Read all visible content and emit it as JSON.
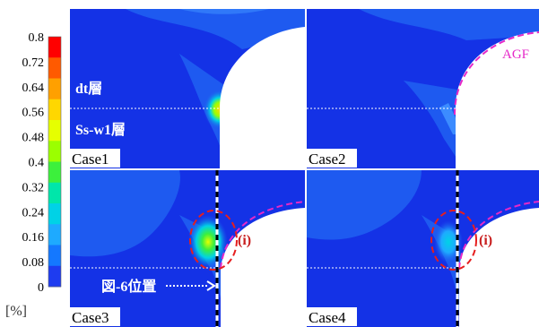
{
  "legend": {
    "ticks": [
      "0.8",
      "0.72",
      "0.64",
      "0.56",
      "0.48",
      "0.4",
      "0.32",
      "0.24",
      "0.16",
      "0.08",
      "0"
    ],
    "colors": [
      "#ff0000",
      "#ff5a00",
      "#ffa000",
      "#ffd700",
      "#e6ff00",
      "#9bff00",
      "#3cf03c",
      "#00e6aa",
      "#00d2e6",
      "#1eaaff",
      "#1478ff",
      "#1e3cf0"
    ],
    "unit": "[%]"
  },
  "panels": [
    {
      "case_label": "Case1",
      "layer_top": "dt層",
      "layer_bottom": "Ss-w1層",
      "agf_label": ""
    },
    {
      "case_label": "Case2",
      "agf_label": "AGF"
    },
    {
      "case_label": "Case3",
      "marker": "(i)",
      "position_label": "図-6位置"
    },
    {
      "case_label": "Case4",
      "marker": "(i)"
    }
  ],
  "colors": {
    "background": "#1432e6",
    "mid_blue": "#1e5af0",
    "light_blue": "#3c8cff",
    "agf_dashed": "#e628c8",
    "marker_dashed": "#e61e1e",
    "marker_text": "#c81e1e",
    "white_label": "#ffffff"
  }
}
